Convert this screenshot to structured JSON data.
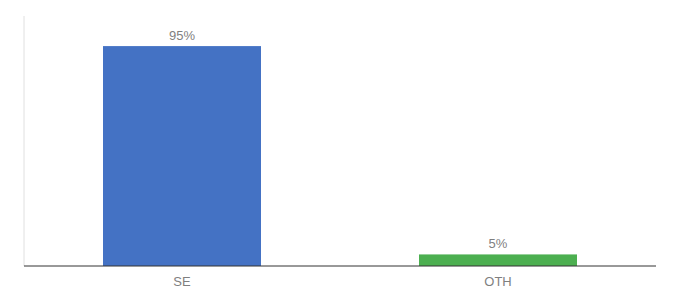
{
  "chart_data": {
    "type": "bar",
    "categories": [
      "SE",
      "OTH"
    ],
    "values": [
      95,
      5
    ],
    "value_labels": [
      "95%",
      "5%"
    ],
    "data_labels": true,
    "colors": [
      "#4472C4",
      "#4CAF50"
    ],
    "ylim": [
      0,
      108
    ],
    "tick_labels": "x",
    "grid": false
  }
}
